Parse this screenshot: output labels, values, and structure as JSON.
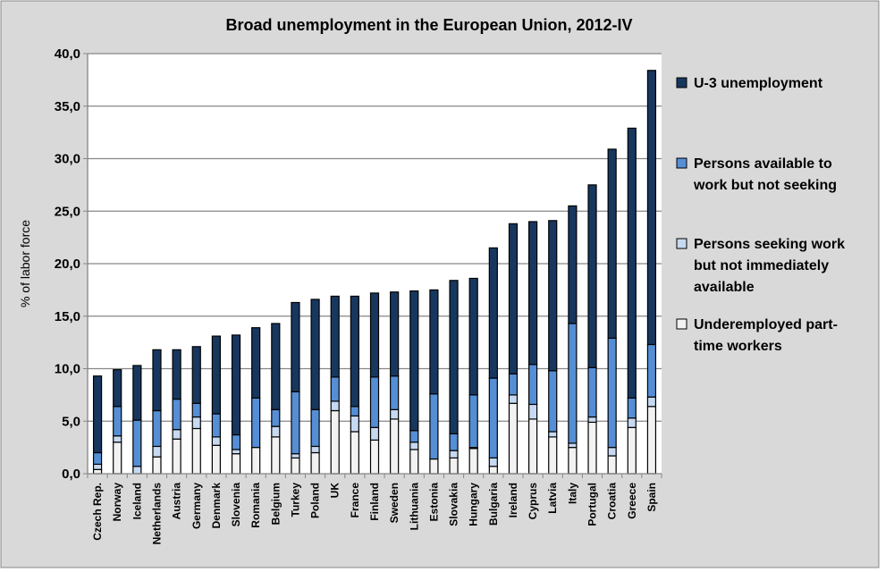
{
  "chart_data": {
    "type": "bar",
    "stacked": true,
    "title": "Broad unemployment in the European Union, 2012-IV",
    "xlabel": "",
    "ylabel": "% of labor force",
    "ylim": [
      0,
      40
    ],
    "yticks": [
      "0,0",
      "5,0",
      "10,0",
      "15,0",
      "20,0",
      "25,0",
      "30,0",
      "35,0",
      "40,0"
    ],
    "grid": true,
    "legend_position": "right",
    "categories": [
      "Czech Rep.",
      "Norway",
      "Iceland",
      "Netherlands",
      "Austria",
      "Germany",
      "Denmark",
      "Slovenia",
      "Romania",
      "Belgium",
      "Turkey",
      "Poland",
      "UK",
      "France",
      "Finland",
      "Sweden",
      "Lithuania",
      "Estonia",
      "Slovakia",
      "Hungary",
      "Bulgaria",
      "Ireland",
      "Cyprus",
      "Latvia",
      "Italy",
      "Portugal",
      "Croatia",
      "Greece",
      "Spain"
    ],
    "series": [
      {
        "name": "Underemployed part-time workers",
        "color": "#f2f2f2",
        "values": [
          0.4,
          3.0,
          0.0,
          1.6,
          3.3,
          4.3,
          2.7,
          1.9,
          2.5,
          3.5,
          1.5,
          2.0,
          6.0,
          4.0,
          3.2,
          5.2,
          2.3,
          1.4,
          1.5,
          2.4,
          0.7,
          6.7,
          5.2,
          3.5,
          2.5,
          4.9,
          1.7,
          4.4,
          6.4
        ]
      },
      {
        "name": "Persons seeking work but not immediately available",
        "color": "#c6d9f1",
        "values": [
          0.5,
          0.6,
          0.7,
          1.0,
          0.9,
          1.1,
          0.8,
          0.4,
          0.0,
          1.0,
          0.4,
          0.6,
          0.9,
          1.5,
          1.2,
          0.9,
          0.7,
          0.0,
          0.7,
          0.1,
          0.8,
          0.8,
          1.4,
          0.5,
          0.4,
          0.5,
          0.8,
          0.9,
          0.9
        ]
      },
      {
        "name": "Persons available to work but not seeking",
        "color": "#558ed5",
        "values": [
          1.1,
          2.8,
          4.4,
          3.4,
          2.9,
          1.3,
          2.2,
          1.4,
          4.7,
          1.6,
          5.9,
          3.5,
          2.3,
          0.9,
          4.8,
          3.2,
          1.1,
          6.2,
          1.6,
          5.0,
          7.6,
          2.0,
          3.8,
          5.8,
          11.4,
          4.7,
          10.4,
          1.9,
          5.0
        ]
      },
      {
        "name": "U-3 unemployment",
        "color": "#17375e",
        "values": [
          7.3,
          3.5,
          5.2,
          5.8,
          4.7,
          5.4,
          7.4,
          9.5,
          6.7,
          8.2,
          8.5,
          10.5,
          7.7,
          10.5,
          8.0,
          8.0,
          13.3,
          9.9,
          14.6,
          11.1,
          12.4,
          14.3,
          13.6,
          14.3,
          11.2,
          17.4,
          18.0,
          25.7,
          26.1
        ]
      }
    ]
  }
}
